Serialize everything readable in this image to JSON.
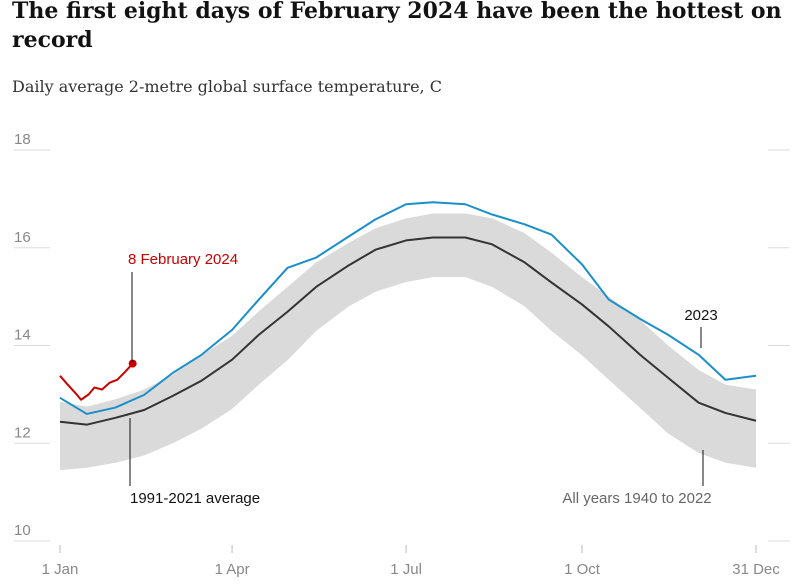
{
  "chart_data": {
    "type": "line",
    "title": "The first eight days of February 2024 have been the hottest on record",
    "subtitle": "Daily average 2-metre global surface temperature, C",
    "xlim": [
      1,
      365
    ],
    "ylim": [
      10,
      18
    ],
    "yticks": [
      10,
      12,
      14,
      16,
      18
    ],
    "xticks": [
      {
        "value": 1,
        "label": "1 Jan"
      },
      {
        "value": 91,
        "label": "1 Apr"
      },
      {
        "value": 182,
        "label": "1 Jul"
      },
      {
        "value": 274,
        "label": "1 Oct"
      },
      {
        "value": 365,
        "label": "31 Dec"
      }
    ],
    "series": [
      {
        "name": "All years 1940 to 2022",
        "kind": "band",
        "color": "#dadada",
        "x": [
          1,
          15,
          30,
          45,
          60,
          75,
          91,
          105,
          120,
          135,
          152,
          166,
          182,
          196,
          213,
          227,
          244,
          258,
          274,
          288,
          305,
          319,
          335,
          349,
          365
        ],
        "low": [
          11.45,
          11.5,
          11.6,
          11.75,
          12.0,
          12.3,
          12.7,
          13.2,
          13.7,
          14.3,
          14.8,
          15.1,
          15.3,
          15.4,
          15.4,
          15.2,
          14.8,
          14.3,
          13.8,
          13.3,
          12.7,
          12.2,
          11.8,
          11.6,
          11.5
        ],
        "high": [
          12.85,
          12.75,
          12.9,
          13.1,
          13.4,
          13.8,
          14.2,
          14.7,
          15.2,
          15.7,
          16.1,
          16.4,
          16.6,
          16.7,
          16.7,
          16.6,
          16.3,
          15.9,
          15.4,
          15.0,
          14.5,
          14.0,
          13.5,
          13.2,
          13.1
        ]
      },
      {
        "name": "1991-2021 average",
        "color": "#333333",
        "x": [
          1,
          15,
          30,
          45,
          60,
          75,
          91,
          105,
          120,
          135,
          152,
          166,
          182,
          196,
          213,
          227,
          244,
          258,
          274,
          288,
          305,
          319,
          335,
          349,
          365
        ],
        "values": [
          12.44,
          12.38,
          12.52,
          12.68,
          12.97,
          13.28,
          13.71,
          14.22,
          14.69,
          15.2,
          15.64,
          15.96,
          16.15,
          16.21,
          16.21,
          16.07,
          15.7,
          15.29,
          14.84,
          14.39,
          13.79,
          13.34,
          12.83,
          12.62,
          12.46
        ]
      },
      {
        "name": "2023",
        "color": "#1a8fc9",
        "x": [
          1,
          15,
          30,
          45,
          60,
          75,
          91,
          105,
          120,
          135,
          152,
          166,
          182,
          196,
          213,
          227,
          244,
          258,
          274,
          288,
          305,
          319,
          335,
          349,
          365
        ],
        "values": [
          12.93,
          12.6,
          12.73,
          12.99,
          13.44,
          13.81,
          14.32,
          14.94,
          15.59,
          15.8,
          16.23,
          16.58,
          16.89,
          16.93,
          16.89,
          16.68,
          16.48,
          16.27,
          15.66,
          14.94,
          14.53,
          14.22,
          13.81,
          13.3,
          13.38
        ]
      },
      {
        "name": "8 February 2024",
        "color": "#c70000",
        "x": [
          1,
          5,
          9,
          12,
          16,
          19,
          23,
          27,
          31,
          35,
          39
        ],
        "values": [
          13.38,
          13.2,
          13.03,
          12.89,
          13.0,
          13.14,
          13.1,
          13.24,
          13.3,
          13.46,
          13.63
        ]
      }
    ]
  }
}
